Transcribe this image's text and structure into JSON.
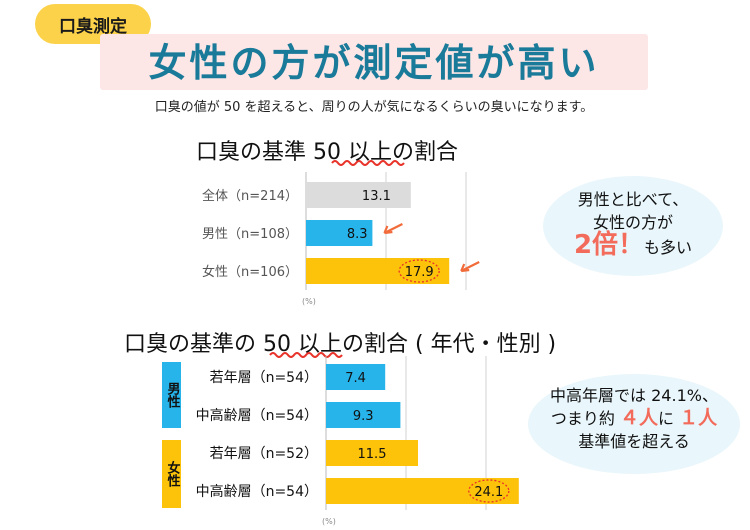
{
  "header": {
    "badge": "口臭測定",
    "title": "女性の方が測定値が高い",
    "subtitle": "口臭の値が 50 を超えると、周りの人が気になるくらいの臭いになります。"
  },
  "chart_data": [
    {
      "type": "bar",
      "orientation": "horizontal",
      "title_pre": "口臭の基準 ",
      "title_mark": "50",
      "title_post": " 以上の割合",
      "categories": [
        "全体（n=214）",
        "男性（n=108）",
        "女性（n=106）"
      ],
      "values": [
        13.1,
        8.3,
        17.9
      ],
      "colors": [
        "#dcdcdc",
        "#27b4ea",
        "#fcc30a"
      ],
      "highlight_index": 2,
      "unit": "(%)",
      "grid": true,
      "xlim": [
        0,
        30
      ]
    },
    {
      "type": "bar",
      "orientation": "horizontal",
      "title_pre": "口臭の基準の ",
      "title_mark": "50",
      "title_post": " 以上の割合 ( 年代・性別 )",
      "groups": [
        {
          "label": "男性",
          "color": "#27b4ea"
        },
        {
          "label": "女性",
          "color": "#fcc30a"
        }
      ],
      "categories": [
        "若年層（n=54）",
        "中高齢層（n=54）",
        "若年層（n=52）",
        "中高齢層（n=54）"
      ],
      "values": [
        7.4,
        9.3,
        11.5,
        24.1
      ],
      "colors": [
        "#27b4ea",
        "#27b4ea",
        "#fcc30a",
        "#fcc30a"
      ],
      "highlight_index": 3,
      "unit": "(%)",
      "grid": true,
      "xlim": [
        0,
        30
      ]
    }
  ],
  "callouts": {
    "top": {
      "line1": "男性と比べて、",
      "line2": "女性の方が",
      "emph": "2倍！",
      "rest": "も多い"
    },
    "bottom": {
      "line1": "中高年層では 24.1%、",
      "pre": "つまり約",
      "n1": "４人",
      "mid": "に",
      "n2": "１人",
      "line3": "基準値を超える"
    }
  }
}
